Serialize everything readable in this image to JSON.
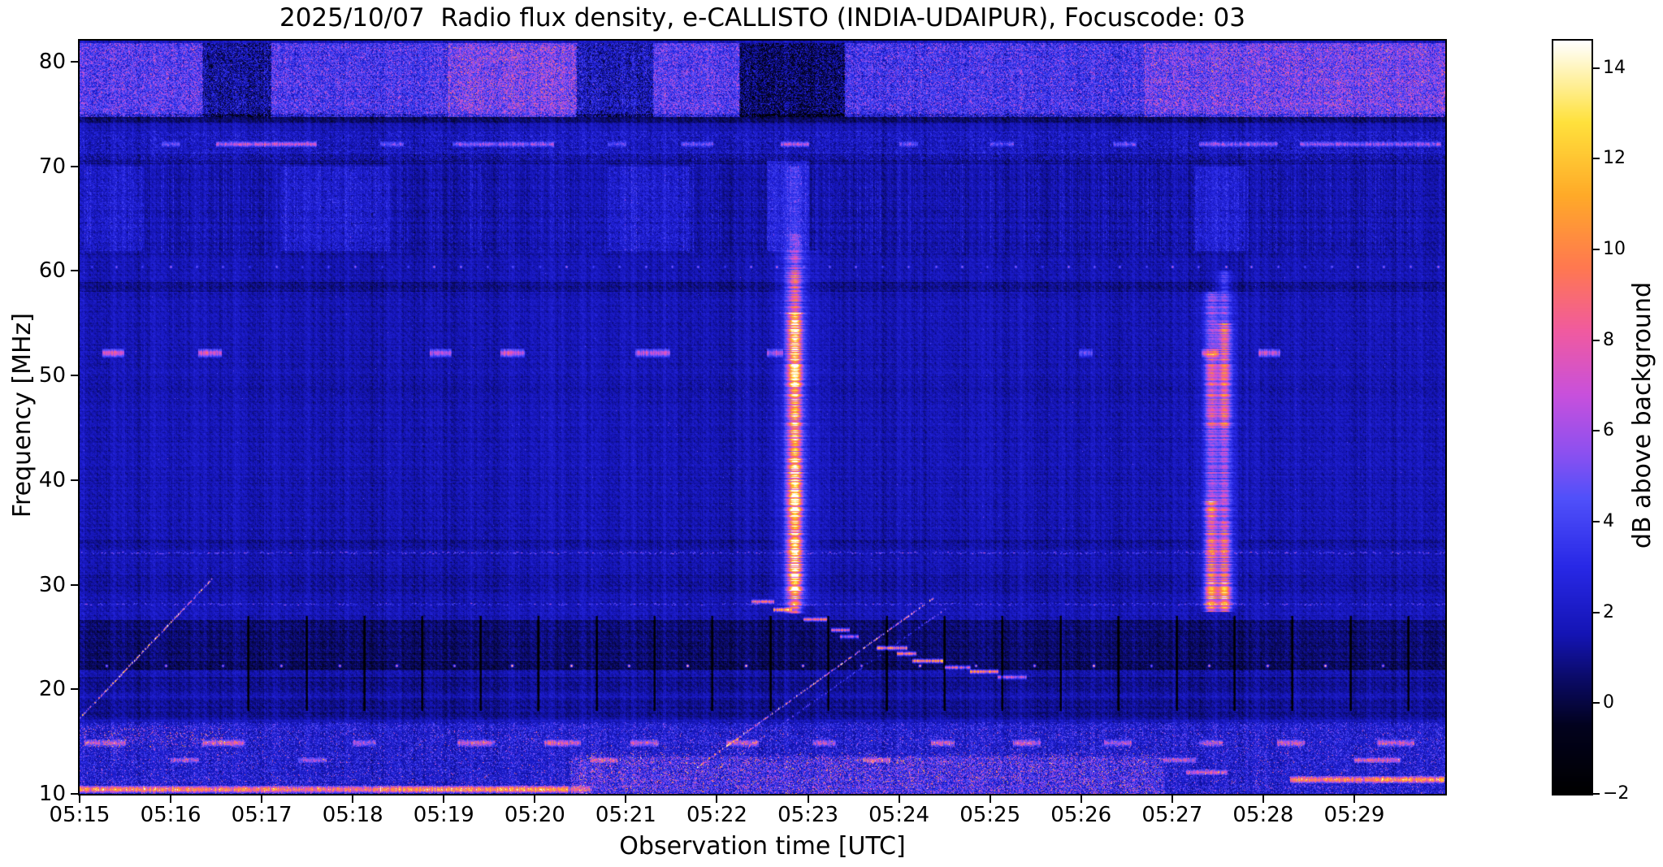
{
  "figure": {
    "date": "2025/10/07",
    "instrument": "e-CALLISTO (INDIA-UDAIPUR)",
    "focuscode": "03"
  },
  "chart_data": {
    "type": "heatmap",
    "title": "2025/10/07  Radio flux density, e-CALLISTO (INDIA-UDAIPUR), Focuscode: 03",
    "xlabel": "Observation time [UTC]",
    "ylabel": "Frequency [MHz]",
    "colorbar_label": "dB above background",
    "xlim_minutes": [
      15,
      30
    ],
    "x_ticks": [
      {
        "t": 15,
        "label": "05:15"
      },
      {
        "t": 16,
        "label": "05:16"
      },
      {
        "t": 17,
        "label": "05:17"
      },
      {
        "t": 18,
        "label": "05:18"
      },
      {
        "t": 19,
        "label": "05:19"
      },
      {
        "t": 20,
        "label": "05:20"
      },
      {
        "t": 21,
        "label": "05:21"
      },
      {
        "t": 22,
        "label": "05:22"
      },
      {
        "t": 23,
        "label": "05:23"
      },
      {
        "t": 24,
        "label": "05:24"
      },
      {
        "t": 25,
        "label": "05:25"
      },
      {
        "t": 26,
        "label": "05:26"
      },
      {
        "t": 27,
        "label": "05:27"
      },
      {
        "t": 28,
        "label": "05:28"
      },
      {
        "t": 29,
        "label": "05:29"
      }
    ],
    "ylim": [
      10,
      82
    ],
    "y_ticks": [
      10,
      20,
      30,
      40,
      50,
      60,
      70,
      80
    ],
    "value_range": [
      -2,
      14.6
    ],
    "colorbar_ticks": [
      {
        "v": 14,
        "label": "14"
      },
      {
        "v": 12,
        "label": "12"
      },
      {
        "v": 10,
        "label": "10"
      },
      {
        "v": 8,
        "label": "8"
      },
      {
        "v": 6,
        "label": "6"
      },
      {
        "v": 4,
        "label": "4"
      },
      {
        "v": 2,
        "label": "2"
      },
      {
        "v": 0,
        "label": "0"
      },
      {
        "v": -2,
        "label": "−2"
      }
    ],
    "colormap_stops": [
      [
        0.0,
        "#000000"
      ],
      [
        0.09,
        "#02021e"
      ],
      [
        0.15,
        "#0a0a64"
      ],
      [
        0.211,
        "#1414b4"
      ],
      [
        0.301,
        "#2828e6"
      ],
      [
        0.392,
        "#5050fa"
      ],
      [
        0.452,
        "#8c50f0"
      ],
      [
        0.53,
        "#c850dc"
      ],
      [
        0.614,
        "#f05aa0"
      ],
      [
        0.699,
        "#ff7850"
      ],
      [
        0.795,
        "#ffaa28"
      ],
      [
        0.892,
        "#ffe13c"
      ],
      [
        1.0,
        "#ffffff"
      ]
    ],
    "background": {
      "base": 1.6,
      "noise": 1.1,
      "diag_amp": 0.22,
      "diag_freq": 0.85
    },
    "row_shading": [
      {
        "f0": 74.2,
        "f1": 75.0,
        "dv": -1.1
      },
      {
        "f0": 70.3,
        "f1": 71.2,
        "dv": -0.5
      },
      {
        "f0": 61.5,
        "f1": 70.3,
        "dv": -0.25
      },
      {
        "f0": 58.1,
        "f1": 58.9,
        "dv": -0.7
      },
      {
        "f0": 33.4,
        "f1": 34.3,
        "dv": -0.35
      },
      {
        "f0": 29.3,
        "f1": 31.0,
        "dv": -0.35
      },
      {
        "f0": 22.9,
        "f1": 26.6,
        "dv": -1.0
      },
      {
        "f0": 21.9,
        "f1": 22.7,
        "dv": -1.3
      },
      {
        "f0": 19.8,
        "f1": 21.2,
        "dv": -0.5
      },
      {
        "f0": 17.2,
        "f1": 19.2,
        "dv": -0.55
      },
      {
        "f0": 10.0,
        "f1": 16.8,
        "dv": 0.25
      }
    ],
    "features": [
      {
        "type": "speckle",
        "t0": 15,
        "t1": 30,
        "f0": 74.8,
        "f1": 81.8,
        "density": 0.6,
        "amp": 3.2
      },
      {
        "type": "patch",
        "t0": 15.0,
        "t1": 16.35,
        "f0": 74.8,
        "f1": 81.8,
        "amp": 1.1,
        "noise": 1.6
      },
      {
        "type": "patch",
        "t0": 16.35,
        "t1": 17.1,
        "f0": 74.8,
        "f1": 81.8,
        "amp": -1.6,
        "noise": 0.8
      },
      {
        "type": "patch",
        "t0": 17.1,
        "t1": 19.05,
        "f0": 74.8,
        "f1": 81.8,
        "amp": 0.9,
        "noise": 1.4
      },
      {
        "type": "patch",
        "t0": 19.05,
        "t1": 20.45,
        "f0": 74.8,
        "f1": 81.8,
        "amp": 1.9,
        "noise": 1.8
      },
      {
        "type": "patch",
        "t0": 20.45,
        "t1": 21.3,
        "f0": 74.8,
        "f1": 81.8,
        "amp": -1.1,
        "noise": 0.8
      },
      {
        "type": "patch",
        "t0": 21.3,
        "t1": 22.25,
        "f0": 74.8,
        "f1": 81.8,
        "amp": 1.2,
        "noise": 1.5
      },
      {
        "type": "patch",
        "t0": 22.25,
        "t1": 23.4,
        "f0": 74.8,
        "f1": 81.8,
        "amp": -2.4,
        "noise": 0.6
      },
      {
        "type": "patch",
        "t0": 23.4,
        "t1": 26.7,
        "f0": 74.8,
        "f1": 81.8,
        "amp": 0.7,
        "noise": 1.4
      },
      {
        "type": "patch",
        "t0": 26.7,
        "t1": 30.0,
        "f0": 74.8,
        "f1": 81.8,
        "amp": 1.7,
        "noise": 1.7
      },
      {
        "type": "speckle",
        "t0": 19.0,
        "t1": 20.5,
        "f0": 75.5,
        "f1": 81.5,
        "density": 0.05,
        "amp": 4.5
      },
      {
        "type": "speckle",
        "t0": 26.8,
        "t1": 30.0,
        "f0": 75.0,
        "f1": 81.5,
        "density": 0.04,
        "amp": 4.0
      },
      {
        "type": "speckle",
        "t0": 15.0,
        "t1": 30.0,
        "f0": 74.8,
        "f1": 81.8,
        "density": 0.015,
        "amp": 4.5
      },
      {
        "type": "speckle",
        "t0": 15,
        "t1": 30,
        "f0": 70.6,
        "f1": 73.4,
        "density": 0.35,
        "amp": 1.8
      },
      {
        "type": "segline",
        "f": 72.1,
        "h": 0.5,
        "segs": [
          [
            15.9,
            16.1,
            3.5
          ],
          [
            16.5,
            17.6,
            5.5
          ],
          [
            18.3,
            18.55,
            3.5
          ],
          [
            19.1,
            20.2,
            4.5
          ],
          [
            20.8,
            21.0,
            3.0
          ],
          [
            21.6,
            21.95,
            3.5
          ],
          [
            22.7,
            23.0,
            5.5
          ],
          [
            24.0,
            24.2,
            3.2
          ],
          [
            25.0,
            25.25,
            3.2
          ],
          [
            26.35,
            26.6,
            3.5
          ],
          [
            27.3,
            28.15,
            4.5
          ],
          [
            28.4,
            29.95,
            4.5
          ]
        ]
      },
      {
        "type": "vstreaks",
        "t0": 15,
        "t1": 30,
        "f0": 61.8,
        "f1": 70.3,
        "density": 0.3,
        "amp": 1.7
      },
      {
        "type": "patch",
        "t0": 17.2,
        "t1": 18.4,
        "f0": 62,
        "f1": 70,
        "amp": 0.7,
        "noise": 0.9
      },
      {
        "type": "patch",
        "t0": 20.8,
        "t1": 21.7,
        "f0": 62,
        "f1": 70,
        "amp": 0.6,
        "noise": 0.9
      },
      {
        "type": "patch",
        "t0": 22.55,
        "t1": 23.0,
        "f0": 62,
        "f1": 70.5,
        "amp": 1.2,
        "noise": 1.0
      },
      {
        "type": "patch",
        "t0": 27.25,
        "t1": 27.8,
        "f0": 62,
        "f1": 70,
        "amp": 0.9,
        "noise": 0.9
      },
      {
        "type": "patch",
        "t0": 15.05,
        "t1": 15.7,
        "f0": 62,
        "f1": 70,
        "amp": 0.6,
        "noise": 0.8
      },
      {
        "type": "dots",
        "f": 60.4,
        "t0": 15.12,
        "t1": 29.95,
        "period": 0.29,
        "amp": 5.2
      },
      {
        "type": "segline",
        "f": 52.2,
        "h": 0.7,
        "segs": [
          [
            15.25,
            15.48,
            6.2
          ],
          [
            16.3,
            16.55,
            6.4
          ],
          [
            18.85,
            19.08,
            4.8
          ],
          [
            19.62,
            19.88,
            6.2
          ],
          [
            21.1,
            21.48,
            5.6
          ],
          [
            22.55,
            22.72,
            5.0
          ],
          [
            25.98,
            26.12,
            3.8
          ],
          [
            27.32,
            27.5,
            4.6
          ],
          [
            27.95,
            28.18,
            6.2
          ]
        ]
      },
      {
        "type": "speckle",
        "t0": 15,
        "t1": 30,
        "f0": 30,
        "f1": 60,
        "density": 0.001,
        "amp": 3.5
      },
      {
        "type": "dotline",
        "f": 33.1,
        "t0": 15,
        "t1": 30,
        "density": 0.45,
        "amp": 2.6
      },
      {
        "type": "dotline",
        "f": 28.15,
        "t0": 15,
        "t1": 30,
        "density": 0.4,
        "amp": 2.2
      },
      {
        "type": "vticks",
        "t0": 16.85,
        "t1": 29.95,
        "period": 0.637,
        "f0": 18.0,
        "f1": 27.0,
        "amp": -3.2
      },
      {
        "type": "dots",
        "f": 22.3,
        "t0": 15.3,
        "t1": 29.95,
        "period": 0.637,
        "amp": 11.5
      },
      {
        "type": "diag",
        "t0": 15.0,
        "f0": 17.3,
        "t1": 16.45,
        "f1": 30.6,
        "density": 0.55,
        "amp": 6.0,
        "boost": [
          0.25,
          0.75,
          1.35
        ]
      },
      {
        "type": "diag",
        "t0": 21.78,
        "f0": 12.6,
        "t1": 24.38,
        "f1": 28.8,
        "density": 0.5,
        "amp": 6.0,
        "boost": [
          0.45,
          0.8,
          1.3
        ]
      },
      {
        "type": "diag",
        "t0": 22.0,
        "f0": 12.4,
        "t1": 24.55,
        "f1": 28.0,
        "density": 0.3,
        "amp": 3.2
      },
      {
        "type": "stairs",
        "segs": [
          [
            22.38,
            22.62,
            28.4,
            8.5
          ],
          [
            22.62,
            22.82,
            27.6,
            9.5
          ],
          [
            22.95,
            23.2,
            26.7,
            8.5
          ],
          [
            23.25,
            23.45,
            25.7,
            7.5
          ],
          [
            23.35,
            23.55,
            25.1,
            6.5
          ],
          [
            23.75,
            24.08,
            24.0,
            9.5
          ],
          [
            23.98,
            24.18,
            23.4,
            8.5
          ],
          [
            24.15,
            24.48,
            22.7,
            10.0
          ],
          [
            24.5,
            24.78,
            22.1,
            7.5
          ],
          [
            24.78,
            25.08,
            21.7,
            8.5
          ],
          [
            25.08,
            25.4,
            21.2,
            6.5
          ]
        ]
      },
      {
        "type": "burst",
        "t": 22.85,
        "w": 0.13,
        "segs": [
          [
            28,
            62,
            2.2
          ]
        ]
      },
      {
        "type": "burst",
        "t": 22.85,
        "w": 0.05,
        "segs": [
          [
            27.3,
            29.5,
            7.5
          ],
          [
            29.5,
            42,
            11.5
          ],
          [
            42,
            49,
            9.0
          ],
          [
            49,
            56,
            11.5
          ],
          [
            56,
            60,
            5.5
          ],
          [
            60,
            63.5,
            3.0
          ],
          [
            63.5,
            70,
            1.5
          ]
        ]
      },
      {
        "type": "burst",
        "t": 27.5,
        "w": 0.14,
        "segs": [
          [
            28,
            58,
            1.7
          ]
        ]
      },
      {
        "type": "burst",
        "t": 27.42,
        "w": 0.045,
        "segs": [
          [
            27.5,
            30.2,
            8.0
          ],
          [
            30.2,
            38,
            6.5
          ],
          [
            38,
            45,
            3.2
          ],
          [
            45,
            52,
            5.0
          ],
          [
            52,
            58,
            2.8
          ]
        ]
      },
      {
        "type": "burst",
        "t": 27.57,
        "w": 0.05,
        "segs": [
          [
            27.5,
            30.2,
            8.5
          ],
          [
            30.2,
            36,
            6.0
          ],
          [
            36,
            45,
            3.5
          ],
          [
            45,
            55,
            6.0
          ],
          [
            55,
            60,
            2.5
          ]
        ]
      },
      {
        "type": "speckle",
        "t0": 15,
        "t1": 30,
        "f0": 10,
        "f1": 16.8,
        "density": 0.3,
        "amp": 3.4
      },
      {
        "type": "speckle",
        "t0": 15,
        "t1": 30,
        "f0": 10,
        "f1": 16.2,
        "density": 0.025,
        "amp": 6.5
      },
      {
        "type": "patch",
        "t0": 20.4,
        "t1": 26.9,
        "f0": 10,
        "f1": 13.6,
        "amp": 0.9,
        "noise": 2.2
      },
      {
        "type": "speckle",
        "t0": 20.4,
        "t1": 26.9,
        "f0": 10,
        "f1": 14,
        "density": 0.06,
        "amp": 5.0
      },
      {
        "type": "speckle",
        "t0": 15.0,
        "t1": 16.6,
        "f0": 14.5,
        "f1": 16.5,
        "density": 0.08,
        "amp": 5.5
      },
      {
        "type": "segline",
        "f": 14.9,
        "h": 0.55,
        "segs": [
          [
            15.05,
            15.5,
            5.0
          ],
          [
            16.35,
            16.8,
            5.5
          ],
          [
            18.0,
            18.25,
            4.2
          ],
          [
            19.15,
            19.55,
            5.2
          ],
          [
            20.1,
            20.5,
            5.5
          ],
          [
            21.05,
            21.35,
            4.6
          ],
          [
            22.1,
            22.45,
            5.2
          ],
          [
            23.05,
            23.3,
            4.4
          ],
          [
            24.35,
            24.6,
            5.0
          ],
          [
            25.25,
            25.55,
            4.6
          ],
          [
            26.25,
            26.55,
            4.6
          ],
          [
            27.3,
            27.55,
            4.4
          ],
          [
            28.15,
            28.45,
            5.0
          ],
          [
            29.25,
            29.65,
            5.2
          ]
        ]
      },
      {
        "type": "segline",
        "f": 13.3,
        "h": 0.5,
        "segs": [
          [
            16.0,
            16.3,
            4.5
          ],
          [
            17.4,
            17.7,
            4.0
          ],
          [
            20.6,
            20.9,
            4.5
          ],
          [
            23.6,
            23.9,
            4.5
          ],
          [
            26.9,
            27.25,
            5.0
          ],
          [
            29.0,
            29.5,
            6.0
          ]
        ]
      },
      {
        "type": "segline",
        "f": 10.45,
        "h": 0.55,
        "segs": [
          [
            15.0,
            16.2,
            8.8
          ],
          [
            16.2,
            18.3,
            8.0
          ],
          [
            18.3,
            20.35,
            9.2
          ],
          [
            20.35,
            20.6,
            5.5
          ]
        ]
      },
      {
        "type": "segline",
        "f": 11.4,
        "h": 0.6,
        "segs": [
          [
            28.3,
            29.3,
            8.2
          ],
          [
            29.3,
            29.98,
            9.0
          ]
        ]
      },
      {
        "type": "segline",
        "f": 12.1,
        "h": 0.5,
        "segs": [
          [
            27.15,
            27.6,
            5.5
          ]
        ]
      }
    ]
  }
}
